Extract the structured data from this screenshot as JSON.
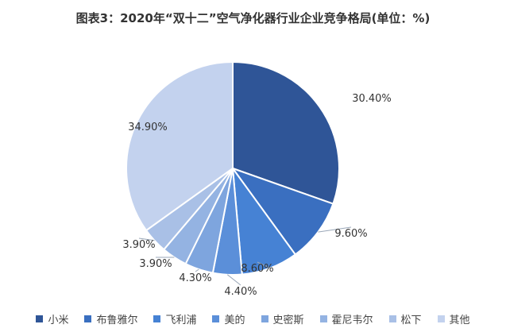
{
  "chart_data": {
    "type": "pie",
    "title": "图表3：2020年“双十二”空气净化器行业企业竞争格局(单位：%)",
    "categories": [
      "小米",
      "布鲁雅尔",
      "飞利浦",
      "美的",
      "史密斯",
      "霍尼韦尔",
      "松下",
      "其他"
    ],
    "values": [
      30.4,
      9.6,
      8.6,
      4.4,
      4.3,
      3.9,
      3.9,
      34.9
    ],
    "labels": [
      "30.40%",
      "9.60%",
      "8.60%",
      "4.40%",
      "4.30%",
      "3.90%",
      "3.90%",
      "34.90%"
    ],
    "colors": [
      "#2f5597",
      "#3a6fc0",
      "#4682d4",
      "#5b8fd9",
      "#7ea5de",
      "#94b3e2",
      "#a9c0e6",
      "#c3d2ee"
    ],
    "legend_position": "bottom"
  }
}
